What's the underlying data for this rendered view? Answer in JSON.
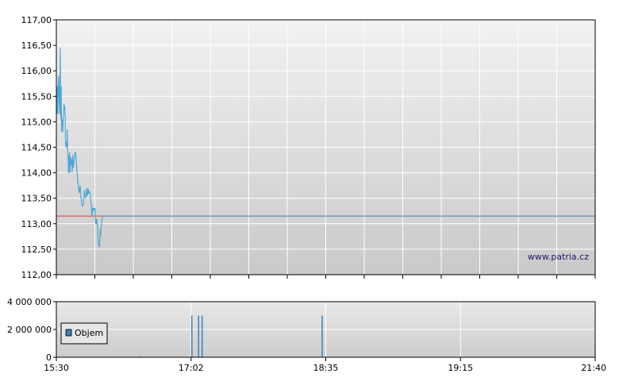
{
  "watermark": "www.patria.cz",
  "chart_data": [
    {
      "type": "line",
      "panel": "price",
      "x_ticks": [
        "15:30",
        "",
        "",
        "",
        "",
        "",
        "",
        "",
        "",
        "",
        "",
        "",
        "",
        "",
        "21:40"
      ],
      "ylim": [
        112.0,
        117.0
      ],
      "y_ticks": [
        "112,00",
        "112,50",
        "113,00",
        "113,50",
        "114,00",
        "114,50",
        "115,00",
        "115,50",
        "116,00",
        "116,50",
        "117,00"
      ],
      "grid": true,
      "reference_line": {
        "value": 113.15,
        "color_active": "#e03a3a",
        "color_after": "#5577aa"
      },
      "series": [
        {
          "color": "#4fa6d6",
          "points": [
            [
              0.0,
              115.15
            ],
            [
              0.012,
              115.2
            ],
            [
              0.025,
              115.7
            ],
            [
              0.037,
              115.15
            ],
            [
              0.049,
              115.75
            ],
            [
              0.06,
              115.9
            ],
            [
              0.075,
              115.4
            ],
            [
              0.088,
              115.15
            ],
            [
              0.098,
              116.45
            ],
            [
              0.105,
              116.0
            ],
            [
              0.112,
              115.2
            ],
            [
              0.118,
              115.05
            ],
            [
              0.127,
              115.7
            ],
            [
              0.135,
              114.8
            ],
            [
              0.142,
              115.05
            ],
            [
              0.15,
              114.95
            ],
            [
              0.16,
              115.05
            ],
            [
              0.17,
              114.8
            ],
            [
              0.18,
              115.1
            ],
            [
              0.19,
              115.2
            ],
            [
              0.2,
              115.35
            ],
            [
              0.21,
              115.25
            ],
            [
              0.22,
              115.3
            ],
            [
              0.23,
              115.0
            ],
            [
              0.24,
              114.55
            ],
            [
              0.25,
              114.5
            ],
            [
              0.262,
              114.6
            ],
            [
              0.275,
              114.5
            ],
            [
              0.285,
              114.85
            ],
            [
              0.293,
              114.45
            ],
            [
              0.305,
              114.35
            ],
            [
              0.315,
              114.0
            ],
            [
              0.325,
              114.35
            ],
            [
              0.335,
              114.0
            ],
            [
              0.345,
              114.4
            ],
            [
              0.355,
              114.0
            ],
            [
              0.365,
              114.25
            ],
            [
              0.378,
              114.3
            ],
            [
              0.39,
              114.15
            ],
            [
              0.4,
              114.25
            ],
            [
              0.41,
              114.0
            ],
            [
              0.42,
              114.3
            ],
            [
              0.43,
              114.35
            ],
            [
              0.44,
              114.1
            ],
            [
              0.45,
              114.15
            ],
            [
              0.462,
              114.25
            ],
            [
              0.472,
              114.3
            ],
            [
              0.482,
              114.4
            ],
            [
              0.495,
              114.4
            ],
            [
              0.505,
              114.35
            ],
            [
              0.515,
              114.2
            ],
            [
              0.525,
              114.15
            ],
            [
              0.535,
              114.0
            ],
            [
              0.545,
              113.95
            ],
            [
              0.558,
              113.8
            ],
            [
              0.57,
              113.8
            ],
            [
              0.58,
              113.65
            ],
            [
              0.595,
              113.6
            ],
            [
              0.61,
              113.7
            ],
            [
              0.62,
              113.75
            ],
            [
              0.632,
              113.55
            ],
            [
              0.645,
              113.5
            ],
            [
              0.658,
              113.4
            ],
            [
              0.672,
              113.35
            ],
            [
              0.69,
              113.35
            ],
            [
              0.705,
              113.4
            ],
            [
              0.715,
              113.5
            ],
            [
              0.725,
              113.65
            ],
            [
              0.735,
              113.55
            ],
            [
              0.748,
              113.55
            ],
            [
              0.76,
              113.5
            ],
            [
              0.77,
              113.6
            ],
            [
              0.78,
              113.7
            ],
            [
              0.79,
              113.55
            ],
            [
              0.8,
              113.55
            ],
            [
              0.81,
              113.6
            ],
            [
              0.82,
              113.7
            ],
            [
              0.83,
              113.6
            ],
            [
              0.84,
              113.6
            ],
            [
              0.85,
              113.65
            ],
            [
              0.86,
              113.6
            ],
            [
              0.875,
              113.6
            ],
            [
              0.89,
              113.5
            ],
            [
              0.9,
              113.4
            ],
            [
              0.91,
              113.35
            ],
            [
              0.92,
              113.2
            ],
            [
              0.93,
              113.15
            ],
            [
              0.94,
              113.3
            ],
            [
              0.955,
              113.3
            ],
            [
              0.965,
              113.25
            ],
            [
              0.975,
              113.3
            ],
            [
              0.985,
              113.3
            ],
            [
              0.995,
              113.3
            ],
            [
              1.005,
              113.3
            ],
            [
              1.015,
              113.05
            ],
            [
              1.025,
              113.0
            ],
            [
              1.035,
              113.0
            ],
            [
              1.045,
              113.1
            ],
            [
              1.058,
              113.05
            ],
            [
              1.07,
              112.95
            ],
            [
              1.08,
              112.75
            ],
            [
              1.09,
              112.65
            ],
            [
              1.1,
              112.6
            ],
            [
              1.112,
              112.55
            ],
            [
              1.122,
              112.55
            ],
            [
              1.132,
              112.7
            ],
            [
              1.14,
              112.9
            ],
            [
              1.148,
              112.75
            ],
            [
              1.156,
              112.85
            ],
            [
              1.164,
              112.95
            ],
            [
              1.172,
              113.0
            ],
            [
              1.18,
              113.05
            ],
            [
              1.188,
              113.1
            ],
            [
              1.196,
              113.15
            ]
          ]
        }
      ]
    },
    {
      "type": "bar",
      "panel": "volume",
      "x_ticks": [
        "15:30",
        "17:02",
        "18:35",
        "19:15",
        "21:40"
      ],
      "ylim": [
        0,
        4000000
      ],
      "y_ticks": [
        "0",
        "2 000 000",
        "4 000 000"
      ],
      "grid": true,
      "legend": {
        "label": "Objem",
        "position": "bottom-left",
        "color": "#3d7fb8"
      },
      "series": [
        {
          "color": "#3d7fb8",
          "bars": [
            [
              0.616,
              80000
            ],
            [
              1.006,
              3000000
            ],
            [
              1.056,
              3000000
            ],
            [
              1.082,
              3000000
            ],
            [
              1.973,
              3000000
            ]
          ]
        }
      ]
    }
  ]
}
